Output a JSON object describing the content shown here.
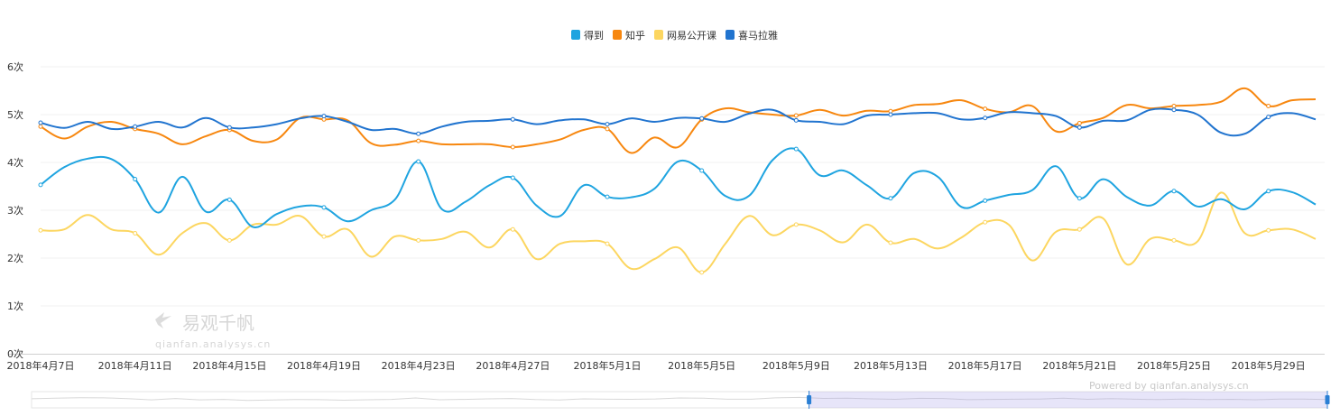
{
  "chart_data": {
    "type": "line",
    "title": "",
    "xlabel": "",
    "ylabel": "",
    "ylim": [
      0,
      6
    ],
    "y_ticks": [
      "0次",
      "1次",
      "2次",
      "3次",
      "4次",
      "5次",
      "6次"
    ],
    "x_tick_labels": [
      "2018年4月7日",
      "2018年4月11日",
      "2018年4月15日",
      "2018年4月19日",
      "2018年4月23日",
      "2018年4月27日",
      "2018年5月1日",
      "2018年5月5日",
      "2018年5月9日",
      "2018年5月13日",
      "2018年5月17日",
      "2018年5月21日",
      "2018年5月25日",
      "2018年5月29日"
    ],
    "x": [
      "2018-04-07",
      "2018-04-08",
      "2018-04-09",
      "2018-04-10",
      "2018-04-11",
      "2018-04-12",
      "2018-04-13",
      "2018-04-14",
      "2018-04-15",
      "2018-04-16",
      "2018-04-17",
      "2018-04-18",
      "2018-04-19",
      "2018-04-20",
      "2018-04-21",
      "2018-04-22",
      "2018-04-23",
      "2018-04-24",
      "2018-04-25",
      "2018-04-26",
      "2018-04-27",
      "2018-04-28",
      "2018-04-29",
      "2018-04-30",
      "2018-05-01",
      "2018-05-02",
      "2018-05-03",
      "2018-05-04",
      "2018-05-05",
      "2018-05-06",
      "2018-05-07",
      "2018-05-08",
      "2018-05-09",
      "2018-05-10",
      "2018-05-11",
      "2018-05-12",
      "2018-05-13",
      "2018-05-14",
      "2018-05-15",
      "2018-05-16",
      "2018-05-17",
      "2018-05-18",
      "2018-05-19",
      "2018-05-20",
      "2018-05-21",
      "2018-05-22",
      "2018-05-23",
      "2018-05-24",
      "2018-05-25",
      "2018-05-26",
      "2018-05-27",
      "2018-05-28",
      "2018-05-29",
      "2018-05-30",
      "2018-05-31"
    ],
    "grid": true,
    "legend_position": "top-center",
    "series": [
      {
        "name": "得到",
        "color": "#1fa4e0",
        "values": [
          3.53,
          3.9,
          4.08,
          4.07,
          3.65,
          2.95,
          3.7,
          2.97,
          3.22,
          2.65,
          2.92,
          3.08,
          3.06,
          2.77,
          3.0,
          3.22,
          4.02,
          3.02,
          3.18,
          3.52,
          3.68,
          3.1,
          2.88,
          3.52,
          3.28,
          3.27,
          3.45,
          4.02,
          3.83,
          3.3,
          3.3,
          4.05,
          4.28,
          3.73,
          3.83,
          3.52,
          3.25,
          3.78,
          3.7,
          3.07,
          3.2,
          3.32,
          3.42,
          3.92,
          3.25,
          3.65,
          3.28,
          3.1,
          3.4,
          3.08,
          3.23,
          3.02,
          3.4,
          3.38,
          3.12
        ]
      },
      {
        "name": "知乎",
        "color": "#f7870f",
        "values": [
          4.75,
          4.5,
          4.75,
          4.85,
          4.7,
          4.6,
          4.38,
          4.55,
          4.68,
          4.45,
          4.48,
          4.93,
          4.9,
          4.88,
          4.4,
          4.37,
          4.45,
          4.38,
          4.38,
          4.38,
          4.32,
          4.38,
          4.48,
          4.68,
          4.7,
          4.2,
          4.52,
          4.32,
          4.9,
          5.13,
          5.05,
          5.0,
          4.98,
          5.1,
          4.98,
          5.08,
          5.07,
          5.2,
          5.22,
          5.3,
          5.12,
          5.05,
          5.18,
          4.65,
          4.82,
          4.93,
          5.2,
          5.13,
          5.18,
          5.2,
          5.27,
          5.55,
          5.18,
          5.3,
          5.32
        ]
      },
      {
        "name": "网易公开课",
        "color": "#fcd660",
        "values": [
          2.58,
          2.6,
          2.9,
          2.6,
          2.52,
          2.07,
          2.52,
          2.73,
          2.37,
          2.7,
          2.7,
          2.88,
          2.45,
          2.6,
          2.03,
          2.45,
          2.37,
          2.4,
          2.55,
          2.22,
          2.6,
          1.98,
          2.3,
          2.35,
          2.3,
          1.78,
          1.98,
          2.22,
          1.7,
          2.3,
          2.88,
          2.48,
          2.7,
          2.58,
          2.33,
          2.7,
          2.32,
          2.4,
          2.2,
          2.43,
          2.75,
          2.7,
          1.95,
          2.55,
          2.6,
          2.83,
          1.87,
          2.4,
          2.37,
          2.35,
          3.37,
          2.52,
          2.58,
          2.6,
          2.4
        ]
      },
      {
        "name": "喜马拉雅",
        "color": "#2174cf",
        "values": [
          4.83,
          4.72,
          4.85,
          4.7,
          4.75,
          4.85,
          4.73,
          4.93,
          4.73,
          4.73,
          4.8,
          4.92,
          4.97,
          4.85,
          4.68,
          4.7,
          4.6,
          4.75,
          4.85,
          4.87,
          4.9,
          4.8,
          4.88,
          4.9,
          4.8,
          4.92,
          4.85,
          4.93,
          4.92,
          4.85,
          5.02,
          5.1,
          4.88,
          4.85,
          4.8,
          4.98,
          5.0,
          5.03,
          5.03,
          4.9,
          4.93,
          5.05,
          5.03,
          4.97,
          4.73,
          4.87,
          4.88,
          5.1,
          5.1,
          5.0,
          4.62,
          4.6,
          4.95,
          5.03,
          4.9
        ]
      }
    ]
  },
  "legend": [
    {
      "label": "得到",
      "color": "#1fa4e0"
    },
    {
      "label": "知乎",
      "color": "#f7870f"
    },
    {
      "label": "网易公开课",
      "color": "#fcd660"
    },
    {
      "label": "喜马拉雅",
      "color": "#2174cf"
    }
  ],
  "watermark": {
    "cn": "易观千帆",
    "en": "qianfan.analysys.cn"
  },
  "powered_by": "Powered by qianfan.analysys.cn",
  "zoom_range": {
    "start_fraction": 0.6,
    "end_fraction": 1.0
  }
}
